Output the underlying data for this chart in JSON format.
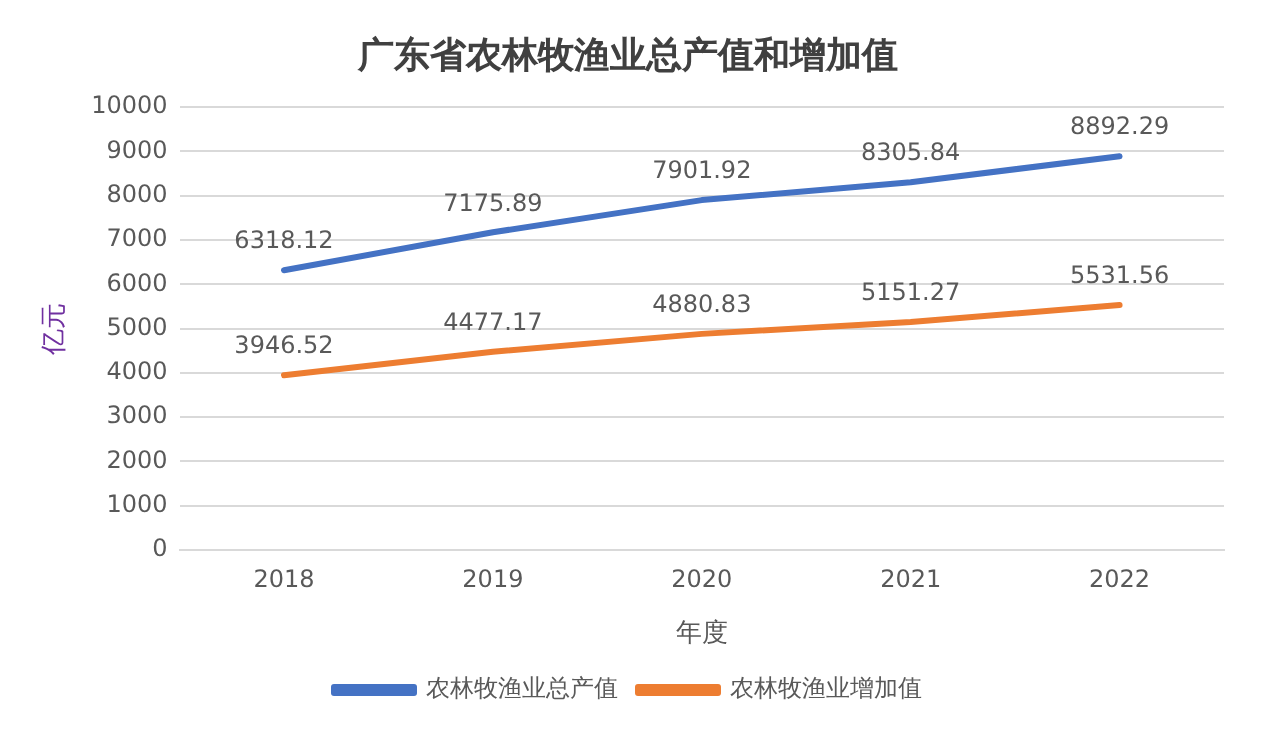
{
  "chart_data": {
    "type": "line",
    "title": "广东省农林牧渔业总产值和增加值",
    "xlabel": "年度",
    "ylabel": "亿元",
    "categories": [
      "2018",
      "2019",
      "2020",
      "2021",
      "2022"
    ],
    "series": [
      {
        "name": "农林牧渔业总产值",
        "color": "#4472c4",
        "values": [
          6318.12,
          7175.89,
          7901.92,
          8305.84,
          8892.29
        ]
      },
      {
        "name": "农林牧渔业增加值",
        "color": "#ed7d31",
        "values": [
          3946.52,
          4477.17,
          4880.83,
          5151.27,
          5531.56
        ]
      }
    ],
    "ylim": [
      0,
      10000
    ],
    "yticks": [
      0,
      1000,
      2000,
      3000,
      4000,
      5000,
      6000,
      7000,
      8000,
      9000,
      10000
    ],
    "grid": "y",
    "legend": "bottom",
    "data_labels": true,
    "marker": "none",
    "line_style": "solid"
  }
}
